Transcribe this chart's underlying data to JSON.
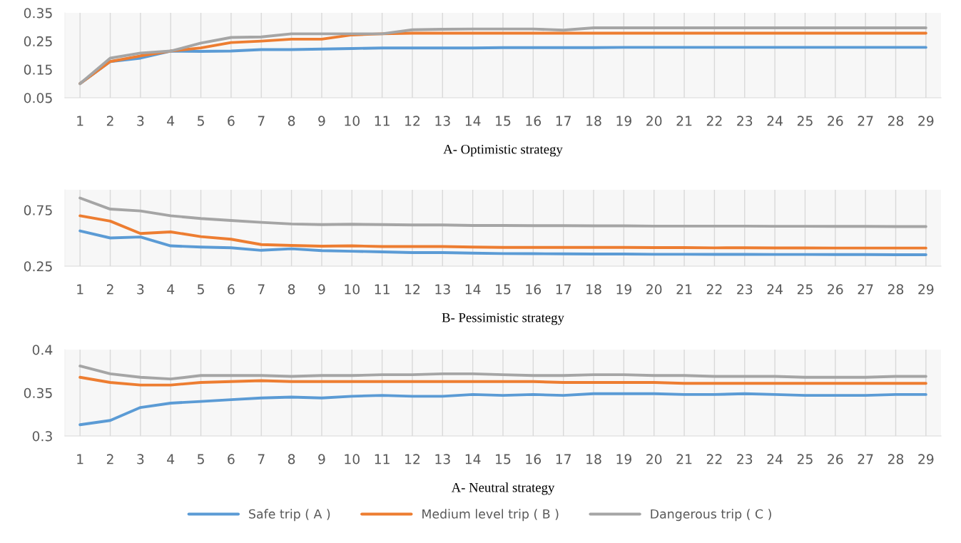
{
  "chart_data": [
    {
      "type": "line",
      "xlabel": "A- Optimistic strategy",
      "categories": [
        "1",
        "2",
        "3",
        "4",
        "5",
        "6",
        "7",
        "8",
        "9",
        "10",
        "11",
        "12",
        "13",
        "14",
        "15",
        "16",
        "17",
        "18",
        "19",
        "20",
        "21",
        "22",
        "23",
        "24",
        "25",
        "26",
        "27",
        "28",
        "29"
      ],
      "ylim": [
        0.05,
        0.35
      ],
      "yticks": [
        0.05,
        0.15,
        0.25,
        0.35
      ],
      "grid": "x",
      "line_style": "solid",
      "series": [
        {
          "color": "#5b9bd5",
          "values": [
            0.1,
            0.178,
            0.19,
            0.215,
            0.214,
            0.215,
            0.22,
            0.22,
            0.222,
            0.224,
            0.226,
            0.226,
            0.226,
            0.226,
            0.227,
            0.227,
            0.227,
            0.227,
            0.228,
            0.228,
            0.228,
            0.228,
            0.228,
            0.228,
            0.228,
            0.228,
            0.228,
            0.228,
            0.228
          ]
        },
        {
          "color": "#ed7d31",
          "values": [
            0.1,
            0.178,
            0.198,
            0.215,
            0.226,
            0.245,
            0.25,
            0.257,
            0.257,
            0.272,
            0.276,
            0.278,
            0.278,
            0.278,
            0.278,
            0.278,
            0.278,
            0.278,
            0.278,
            0.278,
            0.278,
            0.278,
            0.278,
            0.278,
            0.278,
            0.278,
            0.278,
            0.278,
            0.278
          ]
        },
        {
          "color": "#a5a5a5",
          "values": [
            0.1,
            0.19,
            0.208,
            0.215,
            0.243,
            0.263,
            0.265,
            0.276,
            0.276,
            0.276,
            0.276,
            0.29,
            0.292,
            0.293,
            0.293,
            0.293,
            0.289,
            0.297,
            0.297,
            0.297,
            0.297,
            0.297,
            0.297,
            0.297,
            0.297,
            0.297,
            0.297,
            0.297,
            0.297
          ]
        }
      ]
    },
    {
      "type": "line",
      "xlabel": "B- Pessimistic strategy",
      "categories": [
        "1",
        "2",
        "3",
        "4",
        "5",
        "6",
        "7",
        "8",
        "9",
        "10",
        "11",
        "12",
        "13",
        "14",
        "15",
        "16",
        "17",
        "18",
        "19",
        "20",
        "21",
        "22",
        "23",
        "24",
        "25",
        "26",
        "27",
        "28",
        "29"
      ],
      "ylim": [
        0.25,
        0.93
      ],
      "yticks": [
        0.25,
        0.75
      ],
      "grid": "x",
      "line_style": "solid",
      "series": [
        {
          "color": "#5b9bd5",
          "values": [
            0.564,
            0.501,
            0.51,
            0.431,
            0.42,
            0.414,
            0.391,
            0.405,
            0.388,
            0.383,
            0.377,
            0.371,
            0.371,
            0.366,
            0.362,
            0.361,
            0.36,
            0.358,
            0.358,
            0.356,
            0.356,
            0.355,
            0.355,
            0.354,
            0.354,
            0.353,
            0.353,
            0.352,
            0.352
          ]
        },
        {
          "color": "#ed7d31",
          "values": [
            0.699,
            0.651,
            0.541,
            0.555,
            0.513,
            0.49,
            0.442,
            0.434,
            0.428,
            0.431,
            0.425,
            0.425,
            0.425,
            0.42,
            0.417,
            0.417,
            0.417,
            0.417,
            0.417,
            0.415,
            0.415,
            0.413,
            0.414,
            0.412,
            0.412,
            0.411,
            0.411,
            0.411,
            0.411
          ]
        },
        {
          "color": "#a5a5a5",
          "values": [
            0.857,
            0.758,
            0.742,
            0.699,
            0.674,
            0.657,
            0.64,
            0.626,
            0.62,
            0.623,
            0.62,
            0.617,
            0.617,
            0.612,
            0.612,
            0.611,
            0.611,
            0.609,
            0.609,
            0.607,
            0.607,
            0.607,
            0.607,
            0.605,
            0.605,
            0.604,
            0.604,
            0.603,
            0.603
          ]
        }
      ]
    },
    {
      "type": "line",
      "xlabel": "A- Neutral strategy",
      "categories": [
        "1",
        "2",
        "3",
        "4",
        "5",
        "6",
        "7",
        "8",
        "9",
        "10",
        "11",
        "12",
        "13",
        "14",
        "15",
        "16",
        "17",
        "18",
        "19",
        "20",
        "21",
        "22",
        "23",
        "24",
        "25",
        "26",
        "27",
        "28",
        "29"
      ],
      "ylim": [
        0.3,
        0.4
      ],
      "yticks": [
        0.3,
        0.35,
        0.4
      ],
      "grid": "x",
      "line_style": "solid",
      "legend": "bottom",
      "series": [
        {
          "name": "Safe trip ( A )",
          "color": "#5b9bd5",
          "values": [
            0.313,
            0.318,
            0.333,
            0.338,
            0.34,
            0.342,
            0.344,
            0.345,
            0.344,
            0.346,
            0.347,
            0.346,
            0.346,
            0.348,
            0.347,
            0.348,
            0.347,
            0.349,
            0.349,
            0.349,
            0.348,
            0.348,
            0.349,
            0.348,
            0.347,
            0.347,
            0.347,
            0.348,
            0.348
          ]
        },
        {
          "name": "Medium level trip ( B )",
          "color": "#ed7d31",
          "values": [
            0.368,
            0.362,
            0.359,
            0.359,
            0.362,
            0.363,
            0.364,
            0.363,
            0.363,
            0.363,
            0.363,
            0.363,
            0.363,
            0.363,
            0.363,
            0.363,
            0.362,
            0.362,
            0.362,
            0.362,
            0.361,
            0.361,
            0.361,
            0.361,
            0.361,
            0.361,
            0.361,
            0.361,
            0.361
          ]
        },
        {
          "name": "Dangerous trip ( C )",
          "color": "#a5a5a5",
          "values": [
            0.381,
            0.372,
            0.368,
            0.366,
            0.37,
            0.37,
            0.37,
            0.369,
            0.37,
            0.37,
            0.371,
            0.371,
            0.372,
            0.372,
            0.371,
            0.37,
            0.37,
            0.371,
            0.371,
            0.37,
            0.37,
            0.369,
            0.369,
            0.369,
            0.368,
            0.368,
            0.368,
            0.369,
            0.369
          ]
        }
      ]
    }
  ]
}
